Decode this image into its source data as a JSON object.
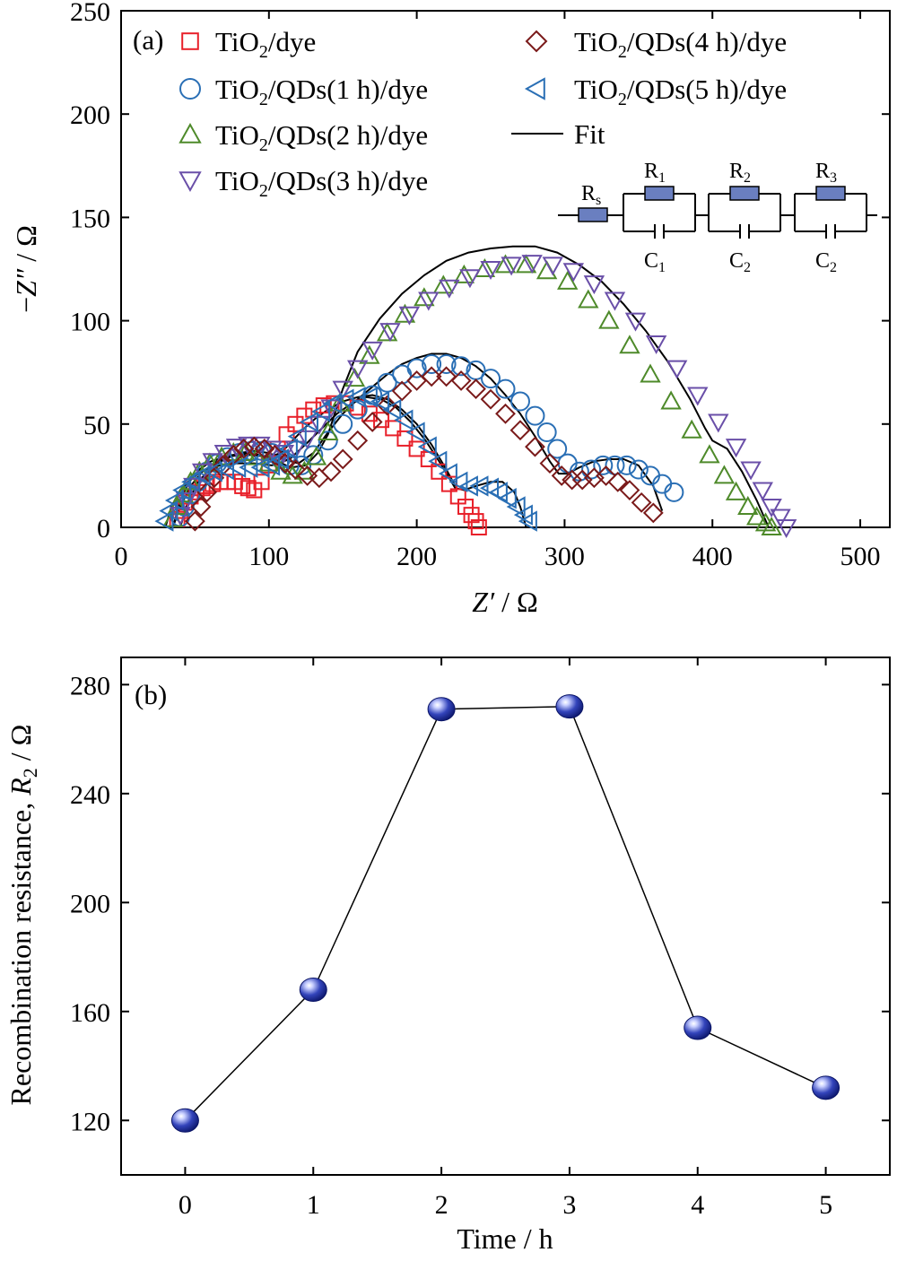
{
  "chart_data": [
    {
      "type": "scatter",
      "panel_label": "(a)",
      "xlabel": "Z′ / Ω",
      "ylabel": "−Z″ / Ω",
      "xlim": [
        0,
        520
      ],
      "ylim": [
        0,
        250
      ],
      "xticks": [
        0,
        100,
        200,
        300,
        400,
        500
      ],
      "yticks": [
        0,
        50,
        100,
        150,
        200,
        250
      ],
      "legend_position": "top",
      "series": [
        {
          "name": "TiO",
          "sub": "2",
          "suffix": "/dye",
          "marker": "square",
          "color": "#e8202a",
          "x": [
            38,
            40,
            43,
            47,
            51,
            55,
            58,
            62,
            67,
            72,
            77,
            82,
            86,
            90,
            95,
            100,
            106,
            112,
            118,
            124,
            130,
            137,
            144,
            152,
            160,
            168,
            176,
            184,
            192,
            200,
            208,
            215,
            222,
            228,
            233,
            237,
            240,
            242
          ],
          "y": [
            4,
            8,
            12,
            15,
            17,
            19,
            20,
            21,
            22,
            22,
            22,
            20,
            19,
            18,
            22,
            30,
            38,
            45,
            50,
            54,
            57,
            59,
            60,
            60,
            58,
            55,
            52,
            48,
            43,
            38,
            33,
            27,
            21,
            15,
            10,
            6,
            3,
            0
          ]
        },
        {
          "name": "TiO",
          "sub": "2",
          "suffix": "/QDs(1 h)/dye",
          "marker": "circle",
          "color": "#2a6fb5",
          "x": [
            40,
            43,
            47,
            52,
            58,
            65,
            72,
            80,
            88,
            95,
            102,
            108,
            114,
            122,
            130,
            140,
            150,
            160,
            170,
            180,
            190,
            200,
            210,
            220,
            230,
            240,
            250,
            260,
            270,
            280,
            288,
            295,
            302,
            310,
            318,
            326,
            334,
            342,
            350,
            358,
            366,
            374
          ],
          "y": [
            5,
            10,
            16,
            22,
            27,
            31,
            34,
            36,
            37,
            37,
            36,
            33,
            30,
            30,
            35,
            42,
            50,
            57,
            64,
            70,
            74,
            77,
            79,
            79,
            78,
            76,
            72,
            67,
            61,
            54,
            46,
            38,
            31,
            27,
            28,
            30,
            30,
            30,
            28,
            25,
            21,
            17
          ]
        },
        {
          "name": "TiO",
          "sub": "2",
          "suffix": "/QDs(2 h)/dye",
          "marker": "triangle-up",
          "color": "#4e8a2a",
          "x": [
            35,
            38,
            42,
            47,
            53,
            60,
            68,
            76,
            84,
            92,
            100,
            108,
            116,
            124,
            132,
            140,
            148,
            158,
            168,
            180,
            192,
            205,
            218,
            232,
            246,
            260,
            274,
            288,
            302,
            316,
            330,
            344,
            358,
            372,
            386,
            398,
            408,
            416,
            424,
            430,
            436,
            440
          ],
          "y": [
            4,
            10,
            16,
            22,
            27,
            31,
            34,
            36,
            36,
            34,
            31,
            27,
            25,
            27,
            34,
            46,
            60,
            72,
            83,
            94,
            103,
            111,
            117,
            122,
            125,
            127,
            127,
            124,
            119,
            110,
            100,
            88,
            74,
            61,
            47,
            35,
            25,
            17,
            10,
            5,
            2,
            0
          ]
        },
        {
          "name": "TiO",
          "sub": "2",
          "suffix": "/QDs(3 h)/dye",
          "marker": "triangle-down",
          "color": "#6a4fa8",
          "x": [
            40,
            44,
            49,
            55,
            62,
            70,
            78,
            86,
            94,
            102,
            110,
            118,
            126,
            134,
            142,
            150,
            160,
            170,
            182,
            195,
            208,
            222,
            236,
            250,
            264,
            278,
            292,
            306,
            320,
            334,
            348,
            362,
            376,
            390,
            404,
            416,
            426,
            434,
            440,
            446,
            450
          ],
          "y": [
            6,
            13,
            20,
            27,
            32,
            36,
            39,
            40,
            40,
            38,
            36,
            38,
            43,
            50,
            58,
            67,
            77,
            86,
            95,
            103,
            110,
            116,
            121,
            125,
            127,
            128,
            127,
            124,
            118,
            110,
            100,
            89,
            77,
            64,
            51,
            39,
            28,
            18,
            10,
            5,
            0
          ]
        },
        {
          "name": "TiO",
          "sub": "2",
          "suffix": "/QDs(4 h)/dye",
          "marker": "diamond",
          "color": "#7a1a1a",
          "x": [
            50,
            54,
            58,
            63,
            69,
            76,
            83,
            90,
            97,
            104,
            111,
            118,
            126,
            134,
            142,
            150,
            160,
            170,
            180,
            190,
            200,
            210,
            220,
            230,
            240,
            250,
            260,
            270,
            280,
            290,
            298,
            305,
            312,
            320,
            328,
            336,
            344,
            352,
            360
          ],
          "y": [
            3,
            10,
            17,
            24,
            30,
            35,
            38,
            39,
            38,
            35,
            31,
            28,
            25,
            24,
            27,
            33,
            42,
            51,
            59,
            66,
            71,
            73,
            73,
            71,
            67,
            62,
            55,
            47,
            39,
            31,
            25,
            23,
            23,
            24,
            25,
            22,
            18,
            12,
            7
          ]
        },
        {
          "name": "TiO",
          "sub": "2",
          "suffix": "/QDs(5 h)/dye",
          "marker": "triangle-left",
          "color": "#2a6fb5",
          "x": [
            30,
            33,
            37,
            42,
            48,
            55,
            63,
            71,
            79,
            87,
            95,
            102,
            108,
            114,
            120,
            128,
            136,
            144,
            152,
            160,
            168,
            176,
            184,
            192,
            200,
            208,
            215,
            222,
            229,
            236,
            243,
            250,
            256,
            262,
            268,
            273,
            276
          ],
          "y": [
            3,
            8,
            13,
            18,
            22,
            25,
            27,
            28,
            29,
            29,
            29,
            30,
            33,
            38,
            44,
            51,
            56,
            60,
            62,
            63,
            63,
            61,
            57,
            52,
            46,
            39,
            32,
            26,
            22,
            20,
            20,
            19,
            17,
            14,
            10,
            6,
            3
          ]
        }
      ],
      "fit": {
        "name": "Fit",
        "color": "#000000",
        "curves": [
          {
            "x": [
              35,
              40,
              46,
              53,
              61,
              70,
              80,
              90,
              100,
              108,
              116,
              124,
              132,
              140,
              150,
              160,
              170,
              180,
              190,
              200,
              210,
              220,
              226
            ],
            "y": [
              0,
              13,
              22,
              28,
              32,
              34,
              35,
              35,
              34,
              36,
              42,
              48,
              53,
              57,
              61,
              63,
              64,
              62,
              57,
              50,
              40,
              28,
              20
            ]
          },
          {
            "x": [
              40,
              45,
              52,
              60,
              70,
              80,
              90,
              100,
              110,
              120,
              130,
              140,
              150,
              160,
              170,
              180,
              190,
              200,
              210,
              220,
              230,
              240,
              250,
              260,
              270,
              280,
              290,
              296,
              302,
              310,
              320,
              330,
              340,
              350,
              360,
              366
            ],
            "y": [
              0,
              12,
              22,
              28,
              33,
              36,
              37,
              36,
              33,
              31,
              36,
              46,
              55,
              62,
              68,
              74,
              79,
              82,
              84,
              84,
              82,
              78,
              72,
              64,
              55,
              44,
              32,
              26,
              26,
              29,
              32,
              33,
              33,
              30,
              20,
              8
            ]
          },
          {
            "x": [
              35,
              40,
              47,
              55,
              65,
              75,
              85,
              95,
              105,
              115,
              125,
              133,
              140,
              150,
              160,
              175,
              190,
              205,
              220,
              235,
              250,
              265,
              280,
              295,
              310,
              325,
              340,
              355,
              370,
              385,
              395,
              400,
              410,
              420,
              430,
              438
            ],
            "y": [
              0,
              10,
              20,
              27,
              32,
              35,
              36,
              35,
              32,
              29,
              30,
              36,
              45,
              67,
              85,
              101,
              113,
              122,
              129,
              133,
              135,
              136,
              136,
              133,
              127,
              119,
              108,
              95,
              80,
              62,
              48,
              42,
              38,
              27,
              13,
              0
            ]
          },
          {
            "x": [
              30,
              34,
              40,
              48,
              57,
              67,
              78,
              90,
              102,
              114,
              126,
              136,
              146,
              156,
              166,
              176,
              186,
              196,
              206,
              216,
              226,
              232,
              240,
              250,
              258,
              266,
              270,
              274
            ],
            "y": [
              0,
              10,
              18,
              24,
              28,
              30,
              31,
              31,
              30,
              33,
              41,
              48,
              55,
              60,
              63,
              62,
              58,
              51,
              42,
              31,
              19,
              18,
              20,
              22,
              22,
              17,
              10,
              0
            ]
          }
        ]
      },
      "circuit": {
        "labels": [
          "R",
          "R",
          "R",
          "R",
          "C",
          "C",
          "C"
        ],
        "subs": [
          "s",
          "1",
          "2",
          "3",
          "1",
          "2",
          "2"
        ],
        "resistor_color": "#6a7fc0"
      }
    },
    {
      "type": "line",
      "panel_label": "(b)",
      "xlabel": "Time / h",
      "ylabel_main": "Recombination resistance, ",
      "ylabel_var": "R",
      "ylabel_sub": "2",
      "ylabel_unit": " / Ω",
      "xlim": [
        -0.5,
        5.5
      ],
      "ylim": [
        100,
        290
      ],
      "xticks": [
        0,
        1,
        2,
        3,
        4,
        5
      ],
      "yticks": [
        120,
        160,
        200,
        240,
        280
      ],
      "marker": "sphere",
      "marker_color": "#2233aa",
      "x": [
        0,
        1,
        2,
        3,
        4,
        5
      ],
      "y": [
        120,
        168,
        271,
        272,
        154,
        132
      ]
    }
  ]
}
